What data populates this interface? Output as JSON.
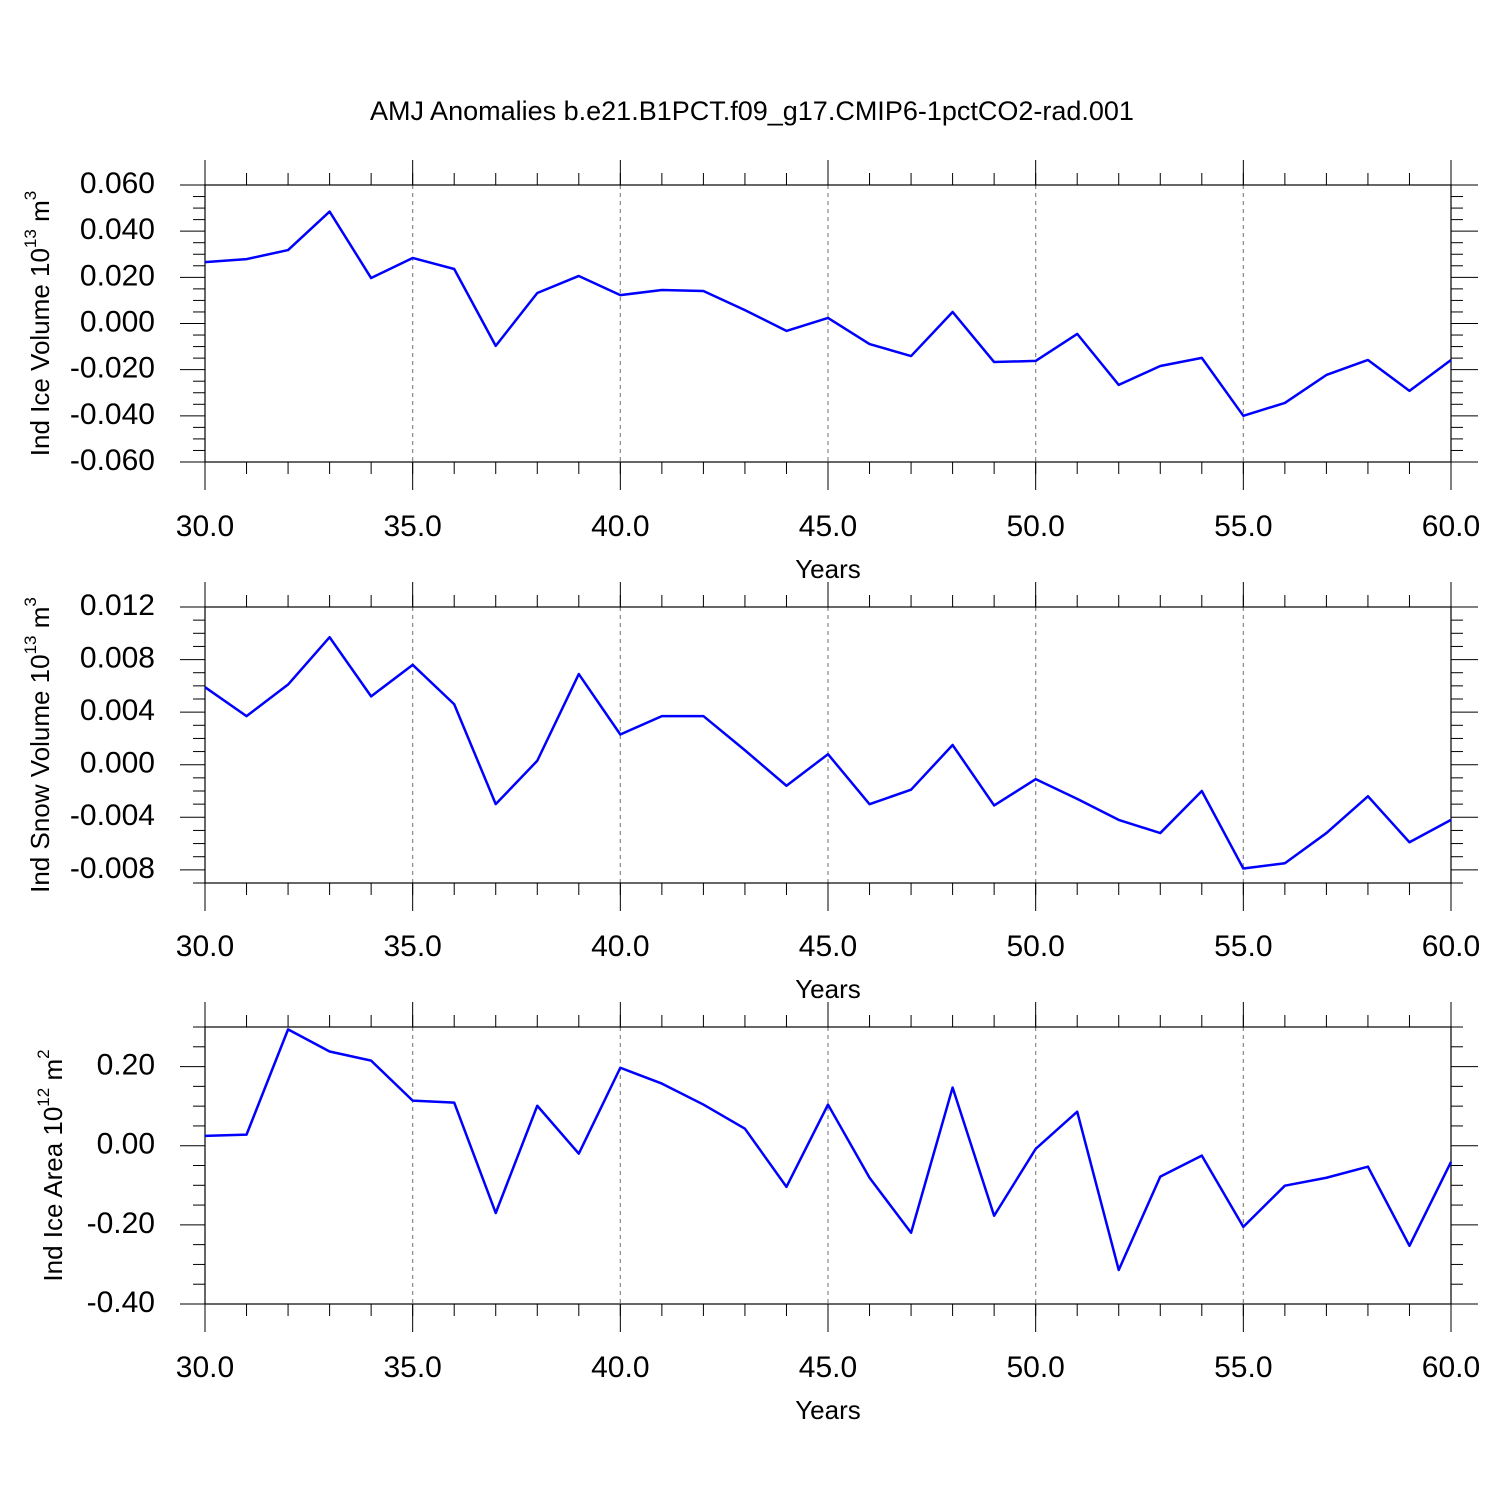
{
  "chart_data": [
    {
      "type": "line",
      "title": "AMJ Anomalies b.e21.B1PCT.f09_g17.CMIP6-1pctCO2-rad.001",
      "ylabel": {
        "text": "Ind Ice Volume 10",
        "exponent": "13",
        "unit": "m",
        "unit_exponent": "3"
      },
      "xlabel": "Years",
      "color": "#0000ff",
      "grid": "x",
      "x": [
        30,
        31,
        32,
        33,
        34,
        35,
        36,
        37,
        38,
        39,
        40,
        41,
        42,
        43,
        44,
        45,
        46,
        47,
        48,
        49,
        50,
        51,
        52,
        53,
        54,
        55,
        56,
        57,
        58,
        59,
        60
      ],
      "values": [
        0.0266,
        0.0279,
        0.0318,
        0.0485,
        0.0197,
        0.0284,
        0.0236,
        -0.0097,
        0.0132,
        0.0206,
        0.0123,
        0.0145,
        0.0141,
        0.0058,
        -0.0032,
        0.0024,
        -0.0089,
        -0.0141,
        0.005,
        -0.0167,
        -0.0162,
        -0.0045,
        -0.0266,
        -0.0184,
        -0.0149,
        -0.04,
        -0.0344,
        -0.0223,
        -0.0158,
        -0.0292,
        -0.0158
      ],
      "xlim": [
        30,
        60
      ],
      "xticks": [
        {
          "value": 30,
          "label": "30.0"
        },
        {
          "value": 35,
          "label": "35.0"
        },
        {
          "value": 40,
          "label": "40.0"
        },
        {
          "value": 45,
          "label": "45.0"
        },
        {
          "value": 50,
          "label": "50.0"
        },
        {
          "value": 55,
          "label": "55.0"
        },
        {
          "value": 60,
          "label": "60.0"
        }
      ],
      "ylim": [
        -0.06,
        0.06
      ],
      "yticks": [
        {
          "value": 0.06,
          "label": "0.060"
        },
        {
          "value": 0.04,
          "label": "0.040"
        },
        {
          "value": 0.02,
          "label": "0.020"
        },
        {
          "value": 0,
          "label": "0.000"
        },
        {
          "value": -0.02,
          "label": "-0.020"
        },
        {
          "value": -0.04,
          "label": "-0.040"
        },
        {
          "value": -0.06,
          "label": "-0.060"
        }
      ]
    },
    {
      "type": "line",
      "ylabel": {
        "text": "Ind Snow Volume 10",
        "exponent": "13",
        "unit": "m",
        "unit_exponent": "3"
      },
      "xlabel": "Years",
      "color": "#0000ff",
      "grid": "x",
      "x": [
        30,
        31,
        32,
        33,
        34,
        35,
        36,
        37,
        38,
        39,
        40,
        41,
        42,
        43,
        44,
        45,
        46,
        47,
        48,
        49,
        50,
        51,
        52,
        53,
        54,
        55,
        56,
        57,
        58,
        59,
        60
      ],
      "values": [
        0.0059,
        0.0037,
        0.0061,
        0.0097,
        0.0052,
        0.0076,
        0.0046,
        -0.003,
        0.0003,
        0.0069,
        0.0023,
        0.0037,
        0.0037,
        0.0011,
        -0.0016,
        0.0008,
        -0.003,
        -0.0019,
        0.0015,
        -0.0031,
        -0.0011,
        -0.0026,
        -0.0042,
        -0.0052,
        -0.002,
        -0.0079,
        -0.0075,
        -0.0052,
        -0.0024,
        -0.0059,
        -0.0042
      ],
      "xlim": [
        30,
        60
      ],
      "xticks": [
        {
          "value": 30,
          "label": "30.0"
        },
        {
          "value": 35,
          "label": "35.0"
        },
        {
          "value": 40,
          "label": "40.0"
        },
        {
          "value": 45,
          "label": "45.0"
        },
        {
          "value": 50,
          "label": "50.0"
        },
        {
          "value": 55,
          "label": "55.0"
        },
        {
          "value": 60,
          "label": "60.0"
        }
      ],
      "ylim": [
        -0.009,
        0.012
      ],
      "yticks": [
        0.012,
        0.008,
        0.004,
        {
          "value": 0,
          "label": "0.000"
        },
        -0.004,
        -0.008
      ]
    },
    {
      "type": "line",
      "ylabel": {
        "text": "Ind Ice Area 10",
        "exponent": "12",
        "unit": "m",
        "unit_exponent": "2"
      },
      "xlabel": "Years",
      "color": "#0000ff",
      "grid": "x",
      "x": [
        30,
        31,
        32,
        33,
        34,
        35,
        36,
        37,
        38,
        39,
        40,
        41,
        42,
        43,
        44,
        45,
        46,
        47,
        48,
        49,
        50,
        51,
        52,
        53,
        54,
        55,
        56,
        57,
        58,
        59,
        60
      ],
      "values": [
        0.025,
        0.028,
        0.294,
        0.238,
        0.215,
        0.114,
        0.109,
        -0.17,
        0.101,
        -0.02,
        0.197,
        0.157,
        0.104,
        0.043,
        -0.104,
        0.104,
        -0.081,
        -0.22,
        0.147,
        -0.177,
        -0.008,
        0.086,
        -0.314,
        -0.078,
        -0.025,
        -0.205,
        -0.101,
        -0.081,
        -0.053,
        -0.253,
        -0.041
      ],
      "xlim": [
        30,
        60
      ],
      "xticks": [
        {
          "value": 30,
          "label": "30.0"
        },
        {
          "value": 35,
          "label": "35.0"
        },
        {
          "value": 40,
          "label": "40.0"
        },
        {
          "value": 45,
          "label": "45.0"
        },
        {
          "value": 50,
          "label": "50.0"
        },
        {
          "value": 55,
          "label": "55.0"
        },
        {
          "value": 60,
          "label": "60.0"
        }
      ],
      "ylim": [
        -0.4,
        0.3
      ],
      "yticks": [
        {
          "value": 0.2,
          "label": "0.20"
        },
        {
          "value": 0,
          "label": "0.00"
        },
        {
          "value": -0.2,
          "label": "-0.20"
        },
        {
          "value": -0.4,
          "label": "-0.40"
        }
      ]
    }
  ]
}
